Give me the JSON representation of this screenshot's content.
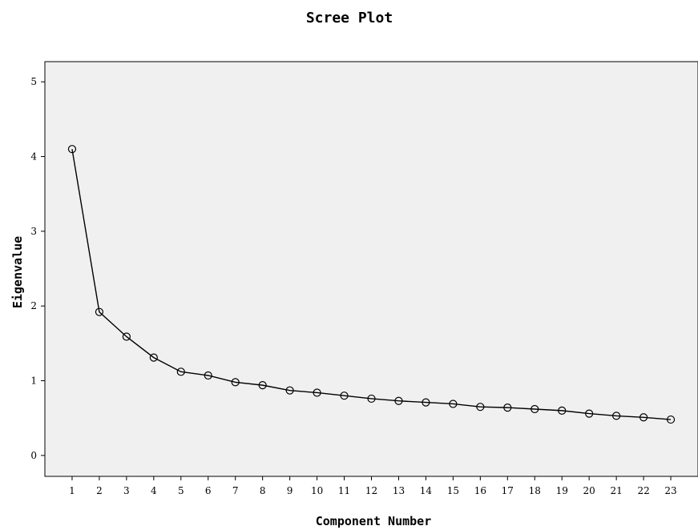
{
  "chart_data": {
    "type": "line",
    "title": "Scree Plot",
    "xlabel": "Component Number",
    "ylabel": "Eigenvalue",
    "x": [
      1,
      2,
      3,
      4,
      5,
      6,
      7,
      8,
      9,
      10,
      11,
      12,
      13,
      14,
      15,
      16,
      17,
      18,
      19,
      20,
      21,
      22,
      23
    ],
    "series": [
      {
        "values": [
          4.1,
          1.92,
          1.59,
          1.31,
          1.12,
          1.07,
          0.98,
          0.94,
          0.87,
          0.84,
          0.8,
          0.76,
          0.73,
          0.71,
          0.69,
          0.65,
          0.64,
          0.62,
          0.6,
          0.56,
          0.53,
          0.51,
          0.48
        ]
      }
    ],
    "x_ticks": [
      "1",
      "2",
      "3",
      "4",
      "5",
      "6",
      "7",
      "8",
      "9",
      "10",
      "11",
      "12",
      "13",
      "14",
      "15",
      "16",
      "17",
      "18",
      "19",
      "20",
      "21",
      "22",
      "23"
    ],
    "y_ticks": [
      "0",
      "1",
      "2",
      "3",
      "4",
      "5"
    ],
    "xlim": [
      0,
      24
    ],
    "ylim": [
      -0.28,
      5.27
    ],
    "grid": false,
    "legend": "none",
    "colors": {
      "plot_background": "#f0f0f0",
      "line": "#000000",
      "marker_edge": "#000000"
    }
  }
}
